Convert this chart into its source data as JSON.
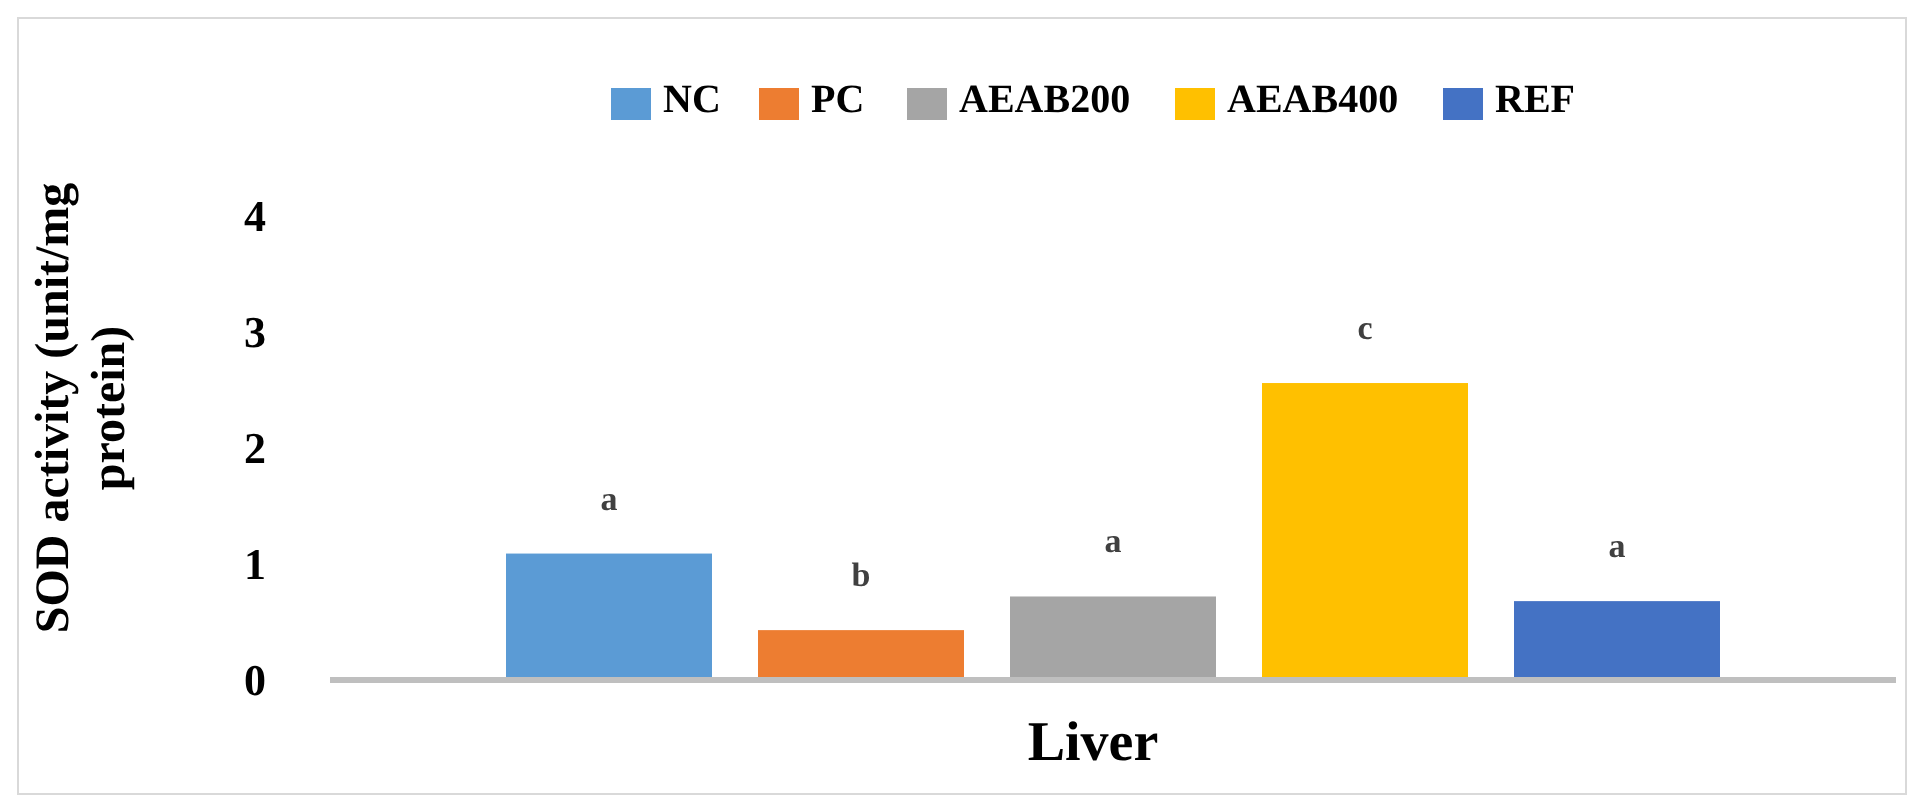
{
  "chart_data": {
    "type": "bar",
    "ylabel": "SOD activity (unit/mg protein)",
    "categories": [
      "Liver"
    ],
    "series": [
      {
        "name": "NC",
        "color": "#5b9bd5",
        "values": [
          1.09
        ]
      },
      {
        "name": "PC",
        "color": "#ed7d31",
        "values": [
          0.43
        ]
      },
      {
        "name": "AEAB200",
        "color": "#a5a5a5",
        "values": [
          0.72
        ]
      },
      {
        "name": "AEAB400",
        "color": "#ffc000",
        "values": [
          2.56
        ]
      },
      {
        "name": "REF",
        "color": "#4472c4",
        "values": [
          0.68
        ]
      }
    ],
    "ylim": [
      0,
      4
    ],
    "yticks": [
      0,
      1,
      2,
      3,
      4
    ],
    "grid": false,
    "legend": "top",
    "annotations": [
      "a",
      "b",
      "a",
      "c",
      "a"
    ]
  }
}
